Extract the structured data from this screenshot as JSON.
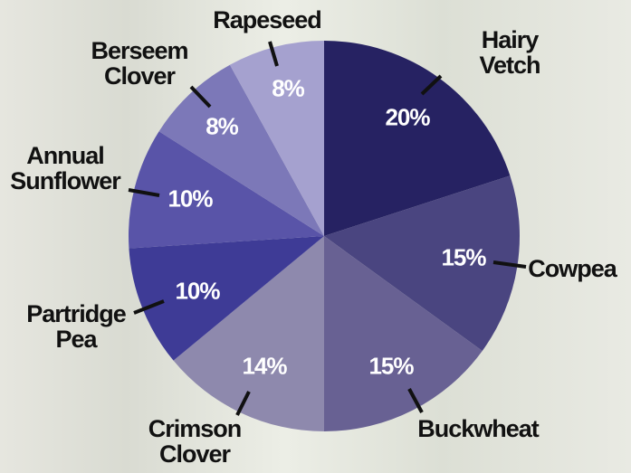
{
  "chart_data": {
    "type": "pie",
    "categories": [
      "Hairy Vetch",
      "Cowpea",
      "Buckwheat",
      "Crimson\nClover",
      "Partridge\nPea",
      "Annual\nSunflower",
      "Berseem\nClover",
      "Rapeseed"
    ],
    "values": [
      20,
      15,
      15,
      14,
      10,
      10,
      8,
      8
    ],
    "value_labels": [
      "20%",
      "15%",
      "15%",
      "14%",
      "10%",
      "10%",
      "8%",
      "8%"
    ],
    "colors": [
      "#262262",
      "#4a4580",
      "#686193",
      "#8e89ad",
      "#3e3b96",
      "#5954a8",
      "#7c78b8",
      "#a5a1cf"
    ]
  }
}
